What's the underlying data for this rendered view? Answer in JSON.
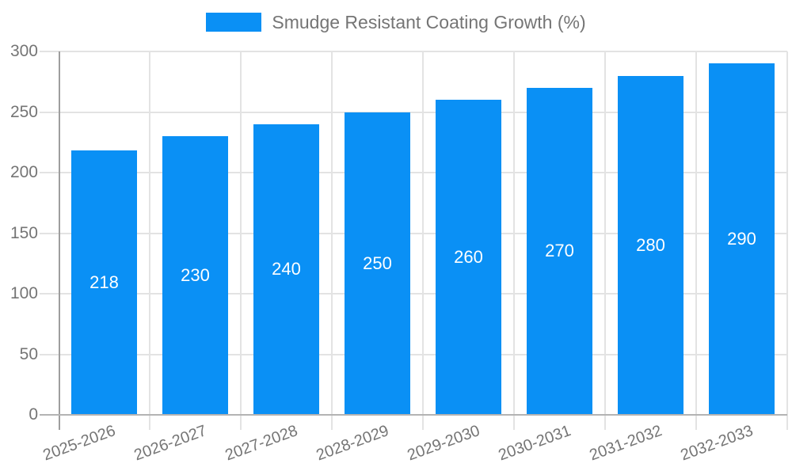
{
  "legend": {
    "label": "Smudge Resistant Coating Growth (%)"
  },
  "chart_data": {
    "type": "bar",
    "title": "",
    "xlabel": "",
    "ylabel": "",
    "categories": [
      "2025-2026",
      "2026-2027",
      "2027-2028",
      "2028-2029",
      "2029-2030",
      "2030-2031",
      "2031-2032",
      "2032-2033"
    ],
    "series": [
      {
        "name": "Smudge Resistant Coating Growth (%)",
        "values": [
          218,
          230,
          240,
          250,
          260,
          270,
          280,
          290
        ]
      }
    ],
    "bar_value_labels": [
      "218",
      "230",
      "240",
      "250",
      "260",
      "270",
      "280",
      "290"
    ],
    "ylim": [
      0,
      300
    ],
    "yticks": [
      0,
      50,
      100,
      150,
      200,
      250,
      300
    ],
    "grid": true,
    "legend_position": "top-center",
    "x_label_rotation_deg": -20,
    "colors": {
      "bar": "#0a90f5",
      "grid": "#e3e3e3",
      "axis": "#9e9e9e",
      "baseline": "#b3b3b3",
      "tick_label": "#757575",
      "bar_label": "#ffffff"
    }
  }
}
